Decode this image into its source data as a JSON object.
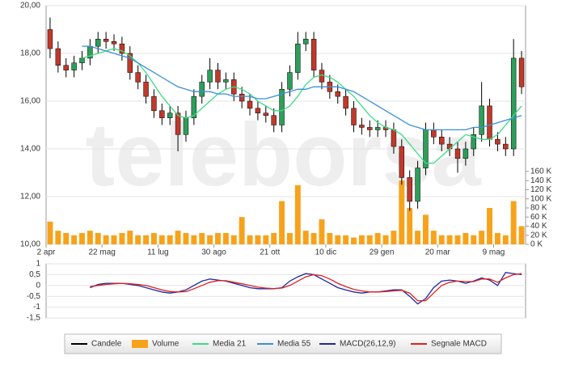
{
  "watermark": "teleborsa",
  "chart_data": [
    {
      "type": "candlestick",
      "categories": [
        "2 apr",
        null,
        null,
        null,
        null,
        null,
        null,
        "22 mag",
        null,
        null,
        null,
        null,
        null,
        null,
        "11 lug",
        null,
        null,
        null,
        null,
        null,
        null,
        "30 ago",
        null,
        null,
        null,
        null,
        null,
        null,
        "21 ott",
        null,
        null,
        null,
        null,
        null,
        null,
        "10 dic",
        null,
        null,
        null,
        null,
        null,
        null,
        "29 gen",
        null,
        null,
        null,
        null,
        null,
        null,
        "20 mar",
        null,
        null,
        null,
        null,
        null,
        null,
        "9 mag",
        null,
        null,
        null
      ],
      "ylim": [
        10,
        20
      ],
      "yticks": [
        {
          "value": 10,
          "label": "10,00"
        },
        {
          "value": 12,
          "label": "12,00"
        },
        {
          "value": 14,
          "label": "14,00"
        },
        {
          "value": 16,
          "label": "16,00"
        },
        {
          "value": 18,
          "label": "18,00"
        },
        {
          "value": 20,
          "label": "20,00"
        }
      ],
      "y2lim": [
        0,
        524000
      ],
      "y2ticks": [
        {
          "value": 0,
          "label": "0 K"
        },
        {
          "value": 20000,
          "label": "20 K"
        },
        {
          "value": 40000,
          "label": "40 K"
        },
        {
          "value": 60000,
          "label": "60 K"
        },
        {
          "value": 80000,
          "label": "80 K"
        },
        {
          "value": 100000,
          "label": "100 K"
        },
        {
          "value": 120000,
          "label": "120 K"
        },
        {
          "value": 140000,
          "label": "140 K"
        },
        {
          "value": 160000,
          "label": "160 K"
        }
      ],
      "grid": true,
      "series": [
        {
          "name": "Candele",
          "color": "#000000",
          "up_color": "#2e9e5b",
          "down_color": "#c0392b",
          "open": [
            19.0,
            18.2,
            17.5,
            17.3,
            17.6,
            17.8,
            18.3,
            18.6,
            18.5,
            18.4,
            18.0,
            17.2,
            16.8,
            16.2,
            15.6,
            15.3,
            15.5,
            14.6,
            15.3,
            16.2,
            16.8,
            17.3,
            16.8,
            16.9,
            16.3,
            16.0,
            15.7,
            15.5,
            15.4,
            15.0,
            16.5,
            17.2,
            18.4,
            18.6,
            17.3,
            16.8,
            16.4,
            16.2,
            15.7,
            15.0,
            14.9,
            14.8,
            14.9,
            14.8,
            14.1,
            12.8,
            11.8,
            13.2,
            14.8,
            14.5,
            14.2,
            14.0,
            13.6,
            14.0,
            14.6,
            15.8,
            14.4,
            14.2,
            14.0,
            17.8
          ],
          "high": [
            19.5,
            18.5,
            17.8,
            17.9,
            18.1,
            18.6,
            18.9,
            18.9,
            18.8,
            18.7,
            18.3,
            17.5,
            17.1,
            16.5,
            15.9,
            15.8,
            15.8,
            15.6,
            16.5,
            17.1,
            17.8,
            17.6,
            17.2,
            17.2,
            16.6,
            16.3,
            16.0,
            15.8,
            15.7,
            16.8,
            17.5,
            18.9,
            18.9,
            18.9,
            17.6,
            17.1,
            16.7,
            16.5,
            16.0,
            15.3,
            15.2,
            15.2,
            15.2,
            15.1,
            14.4,
            13.1,
            13.5,
            15.1,
            15.1,
            14.8,
            14.5,
            14.3,
            14.3,
            14.9,
            16.8,
            16.1,
            14.7,
            14.5,
            18.6,
            18.1
          ],
          "low": [
            17.8,
            17.2,
            17.0,
            17.0,
            17.3,
            17.5,
            18.0,
            18.2,
            18.1,
            17.7,
            16.9,
            16.5,
            15.9,
            15.3,
            15.0,
            15.0,
            13.9,
            14.3,
            15.0,
            15.9,
            16.5,
            16.5,
            16.5,
            16.0,
            15.7,
            15.4,
            15.2,
            15.1,
            14.7,
            14.7,
            16.2,
            16.9,
            18.1,
            17.0,
            16.5,
            16.1,
            15.9,
            15.4,
            14.7,
            14.6,
            14.5,
            14.5,
            14.5,
            13.8,
            12.5,
            11.4,
            11.5,
            12.9,
            14.2,
            13.9,
            13.7,
            13.0,
            13.3,
            13.7,
            14.3,
            14.1,
            13.9,
            13.7,
            13.7,
            16.3
          ],
          "close": [
            18.2,
            17.5,
            17.3,
            17.6,
            17.8,
            18.3,
            18.6,
            18.5,
            18.4,
            18.0,
            17.2,
            16.8,
            16.2,
            15.6,
            15.3,
            15.5,
            14.6,
            15.3,
            16.2,
            16.8,
            17.3,
            16.8,
            16.9,
            16.3,
            16.0,
            15.7,
            15.5,
            15.4,
            15.0,
            16.5,
            17.2,
            18.4,
            18.6,
            17.3,
            16.8,
            16.4,
            16.2,
            15.7,
            15.0,
            14.9,
            14.8,
            14.9,
            14.8,
            14.1,
            12.8,
            11.8,
            13.2,
            14.8,
            14.5,
            14.2,
            14.0,
            13.6,
            14.0,
            14.6,
            15.8,
            14.4,
            14.2,
            14.0,
            17.8,
            16.6
          ]
        },
        {
          "name": "Volume",
          "color": "#f7a21b",
          "axis": "y2",
          "values": [
            50000,
            30000,
            25000,
            20000,
            25000,
            30000,
            25000,
            20000,
            20000,
            25000,
            30000,
            20000,
            20000,
            25000,
            20000,
            20000,
            30000,
            25000,
            20000,
            25000,
            20000,
            25000,
            25000,
            20000,
            60000,
            20000,
            20000,
            20000,
            25000,
            95000,
            25000,
            130000,
            30000,
            25000,
            55000,
            25000,
            20000,
            20000,
            15000,
            20000,
            20000,
            25000,
            20000,
            30000,
            140000,
            80000,
            30000,
            65000,
            30000,
            20000,
            20000,
            20000,
            25000,
            20000,
            30000,
            80000,
            25000,
            20000,
            95000,
            40000
          ]
        },
        {
          "name": "Media 21",
          "color": "#3ddc84",
          "values": [
            null,
            null,
            null,
            null,
            17.8,
            17.9,
            18.0,
            18.1,
            18.2,
            18.1,
            17.9,
            17.6,
            17.2,
            16.7,
            16.2,
            15.8,
            15.4,
            15.3,
            15.4,
            15.7,
            16.0,
            16.3,
            16.5,
            16.6,
            16.5,
            16.3,
            16.0,
            15.8,
            15.6,
            15.6,
            15.8,
            16.2,
            16.7,
            17.0,
            17.1,
            17.0,
            16.8,
            16.5,
            16.2,
            15.8,
            15.4,
            15.1,
            14.9,
            14.8,
            14.6,
            14.2,
            13.8,
            13.4,
            13.4,
            13.7,
            14.0,
            14.3,
            14.6,
            14.5,
            14.4,
            14.4,
            14.6,
            15.0,
            15.4,
            15.8
          ]
        },
        {
          "name": "Media 55",
          "color": "#3a8fd9",
          "values": [
            null,
            null,
            null,
            null,
            18.3,
            18.3,
            18.2,
            18.1,
            18.0,
            17.9,
            17.8,
            17.6,
            17.4,
            17.2,
            17.0,
            16.8,
            16.6,
            16.5,
            16.4,
            16.4,
            16.4,
            16.3,
            16.3,
            16.2,
            16.2,
            16.2,
            16.1,
            16.1,
            16.2,
            16.3,
            16.4,
            16.5,
            16.5,
            16.6,
            16.6,
            16.6,
            16.6,
            16.5,
            16.4,
            16.2,
            16.0,
            15.8,
            15.6,
            15.4,
            15.2,
            15.0,
            14.9,
            14.8,
            14.8,
            14.8,
            14.8,
            14.8,
            14.8,
            14.9,
            14.9,
            15.0,
            15.1,
            15.2,
            15.3,
            15.4
          ]
        }
      ]
    },
    {
      "type": "line",
      "ylim": [
        -1.5,
        1
      ],
      "yticks": [
        {
          "value": -1.5,
          "label": "-1,5"
        },
        -1,
        {
          "value": -0.5,
          "label": "-0,5"
        },
        0,
        {
          "value": 0.5,
          "label": "0,5"
        },
        1
      ],
      "grid": true,
      "series": [
        {
          "name": "MACD(26,12,9)",
          "color": "#1f2a9e",
          "values": [
            null,
            null,
            null,
            null,
            null,
            -0.1,
            0.05,
            0.1,
            0.1,
            0.1,
            0.05,
            0.0,
            -0.1,
            -0.2,
            -0.3,
            -0.35,
            -0.3,
            -0.2,
            0.0,
            0.2,
            0.3,
            0.25,
            0.2,
            0.1,
            0.0,
            -0.1,
            -0.15,
            -0.15,
            -0.15,
            -0.1,
            0.2,
            0.4,
            0.55,
            0.5,
            0.3,
            0.1,
            -0.1,
            -0.2,
            -0.3,
            -0.35,
            -0.3,
            -0.3,
            -0.25,
            -0.2,
            -0.2,
            -0.5,
            -0.85,
            -0.6,
            -0.1,
            0.2,
            0.25,
            0.2,
            0.1,
            0.2,
            0.35,
            0.25,
            0.0,
            0.6,
            0.55,
            0.5
          ]
        },
        {
          "name": "Segnale MACD",
          "color": "#e02020",
          "values": [
            null,
            null,
            null,
            null,
            null,
            -0.05,
            0.0,
            0.05,
            0.08,
            0.1,
            0.08,
            0.05,
            0.0,
            -0.1,
            -0.2,
            -0.28,
            -0.3,
            -0.28,
            -0.15,
            0.0,
            0.15,
            0.22,
            0.22,
            0.15,
            0.08,
            0.0,
            -0.08,
            -0.12,
            -0.14,
            -0.12,
            0.0,
            0.2,
            0.4,
            0.5,
            0.45,
            0.3,
            0.1,
            -0.05,
            -0.18,
            -0.25,
            -0.3,
            -0.3,
            -0.28,
            -0.25,
            -0.22,
            -0.35,
            -0.7,
            -0.7,
            -0.35,
            0.0,
            0.15,
            0.2,
            0.18,
            0.18,
            0.3,
            0.3,
            0.15,
            0.35,
            0.5,
            0.55
          ]
        }
      ]
    }
  ]
}
